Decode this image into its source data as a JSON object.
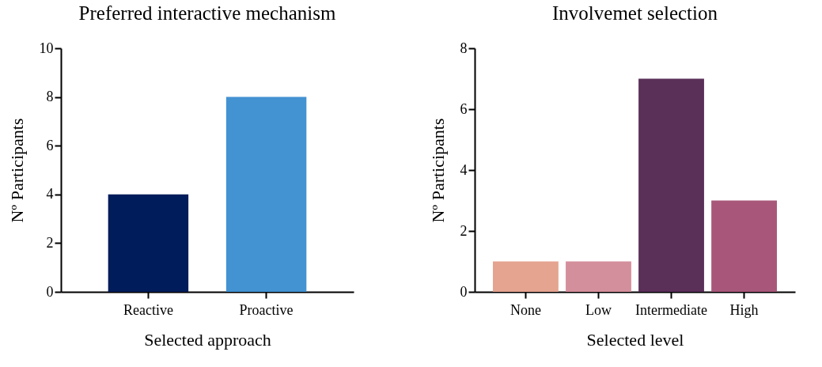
{
  "chart_data": [
    {
      "type": "bar",
      "title": "Preferred interactive mechanism",
      "xlabel": "Selected approach",
      "ylabel": "Nº Participants",
      "categories": [
        "Reactive",
        "Proactive"
      ],
      "values": [
        4,
        8
      ],
      "colors": [
        "#001c5a",
        "#4392d2"
      ],
      "ylim": [
        0,
        10
      ],
      "yticks": [
        0,
        2,
        4,
        6,
        8,
        10
      ]
    },
    {
      "type": "bar",
      "title": "Involvemet selection",
      "xlabel": "Selected level",
      "ylabel": "Nº Participants",
      "categories": [
        "None",
        "Low",
        "Intermediate",
        "High"
      ],
      "values": [
        1,
        1,
        7,
        3
      ],
      "colors": [
        "#e5a490",
        "#d48f9c",
        "#5a2f58",
        "#a8577a"
      ],
      "ylim": [
        0,
        8
      ],
      "yticks": [
        0,
        2,
        4,
        6,
        8
      ]
    }
  ]
}
